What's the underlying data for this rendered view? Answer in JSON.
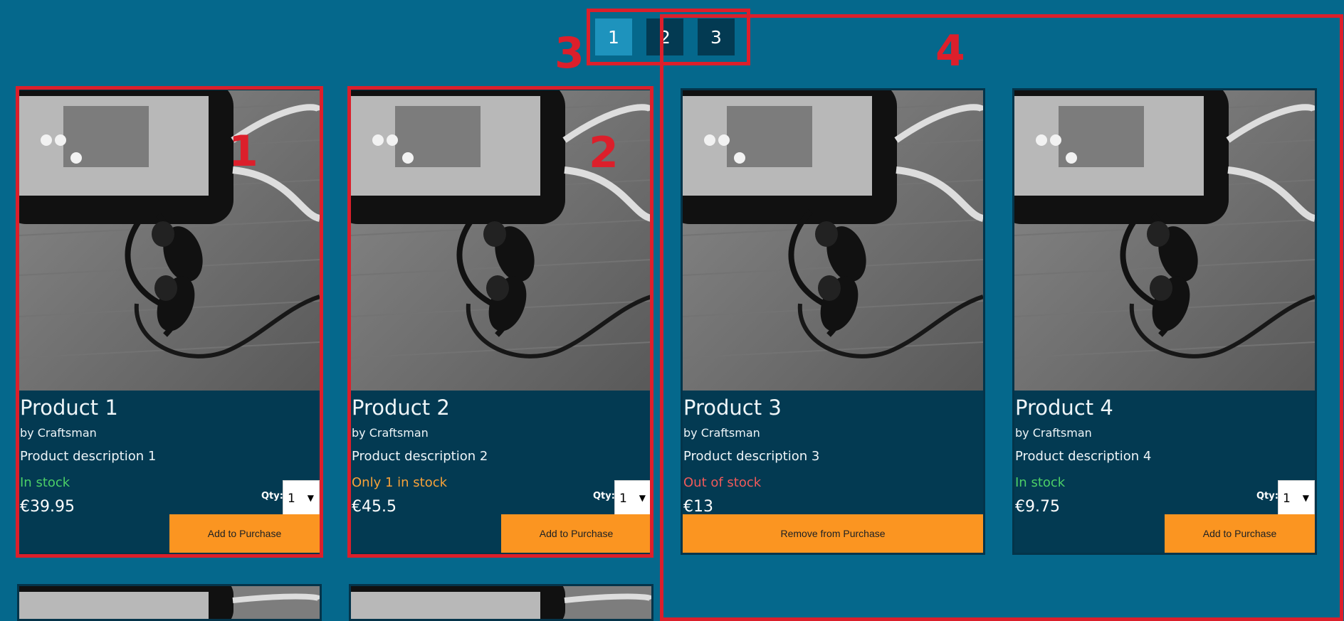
{
  "pagination": {
    "pages": [
      {
        "label": "1",
        "active": true
      },
      {
        "label": "2",
        "active": false
      },
      {
        "label": "3",
        "active": false
      }
    ]
  },
  "annotations": [
    {
      "label": "1"
    },
    {
      "label": "2"
    },
    {
      "label": "3"
    },
    {
      "label": "4"
    }
  ],
  "products": [
    {
      "title": "Product 1",
      "brand": "by Craftsman",
      "description": "Product description 1",
      "stock": "In stock",
      "stock_color": "#4ccf67",
      "price": "€39.95",
      "qty_label": "Qty:",
      "qty_value": "1",
      "button_label": "Add to Purchase"
    },
    {
      "title": "Product 2",
      "brand": "by Craftsman",
      "description": "Product description 2",
      "stock": "Only 1 in stock",
      "stock_color": "#f7a239",
      "price": "€45.5",
      "qty_label": "Qty:",
      "qty_value": "1",
      "button_label": "Add to Purchase"
    },
    {
      "title": "Product 3",
      "brand": "by Craftsman",
      "description": "Product description 3",
      "stock": "Out of stock",
      "stock_color": "#f05a5a",
      "price": "€13",
      "qty_label": "",
      "qty_value": "",
      "button_label": "Remove from Purchase"
    },
    {
      "title": "Product 4",
      "brand": "by Craftsman",
      "description": "Product description 4",
      "stock": "In stock",
      "stock_color": "#4ccf67",
      "price": "€9.75",
      "qty_label": "Qty:",
      "qty_value": "1",
      "button_label": "Add to Purchase"
    }
  ]
}
